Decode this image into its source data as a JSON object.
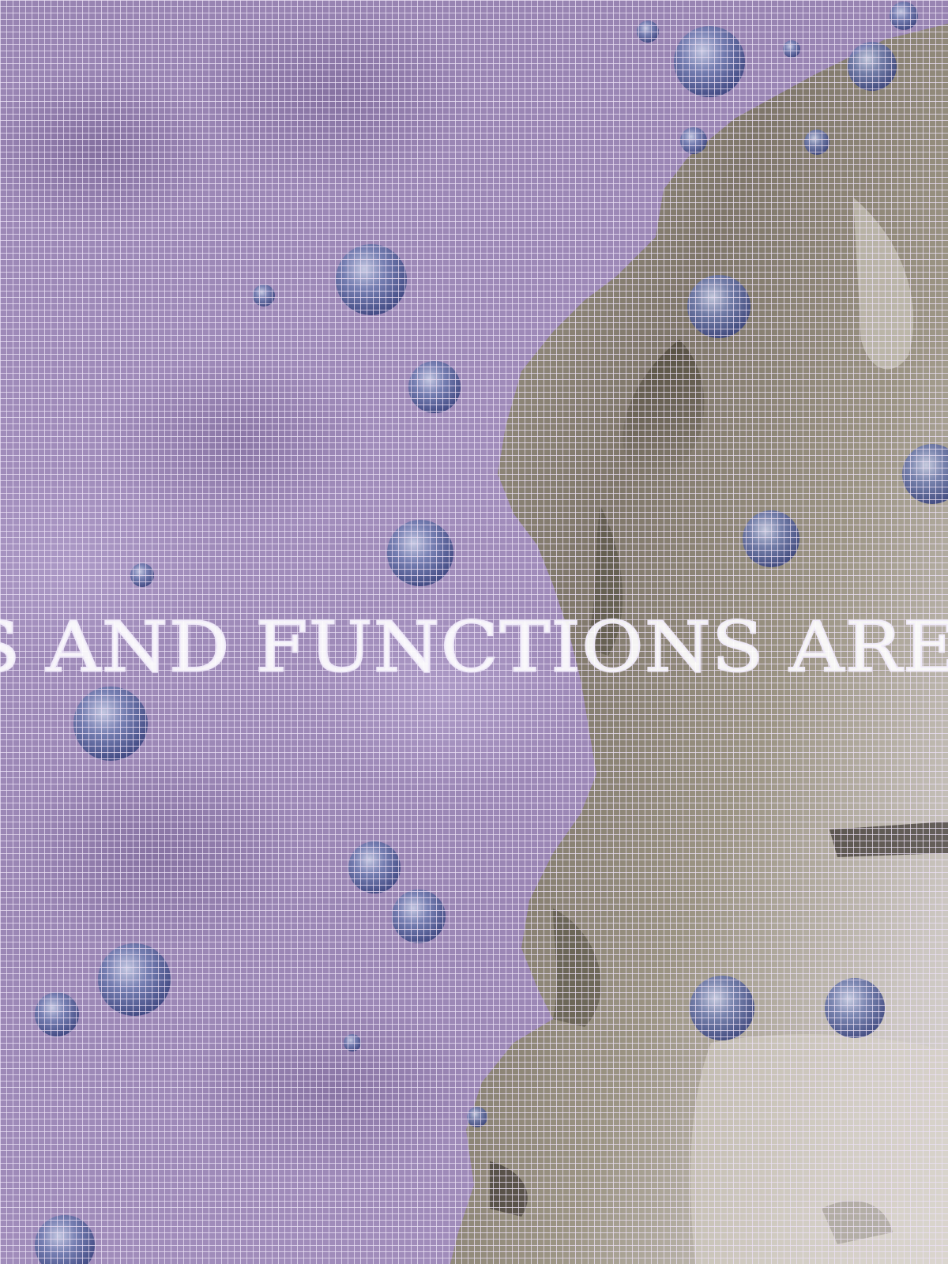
{
  "banner": {
    "text": "S AND FUNCTIONS ARE A"
  },
  "colors": {
    "background": "#9a86b4",
    "grid": "#ebe1f5",
    "bubble": "#4a5a90",
    "figure": "#8f8a78"
  }
}
